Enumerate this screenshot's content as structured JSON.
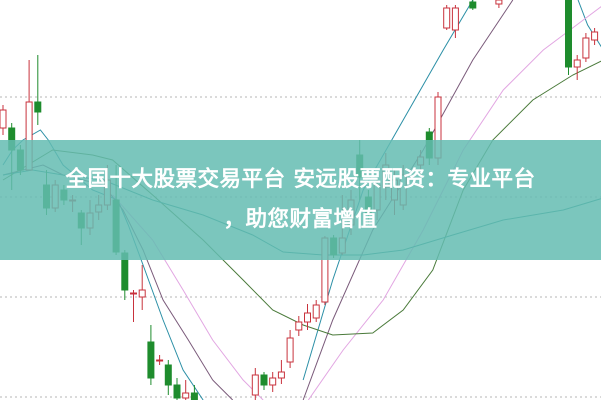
{
  "headline": {
    "line1": "全国十大股票交易平台 安远股票配资：专业平台",
    "line2": "，助您财富增值",
    "banner_color": "#64bcb2"
  },
  "chart_data": {
    "type": "candlestick",
    "title": "",
    "xlabel": "",
    "ylabel": "",
    "ylim": [
      0,
      100
    ],
    "xlim": [
      0,
      68
    ],
    "grid": "horizontal dotted",
    "grid_levels": [
      75.75,
      50.75,
      25.75,
      0.75
    ],
    "colors": {
      "up": "#c8323c",
      "down": "#1e8c2d",
      "grid": "#b4b4b4"
    },
    "candles": [
      {
        "i": 0,
        "o": 68,
        "h": 73.75,
        "l": 66.25,
        "c": 72.5
      },
      {
        "i": 1,
        "o": 68,
        "h": 69.25,
        "l": 52.5,
        "c": 62.5
      },
      {
        "i": 2,
        "o": 62.5,
        "h": 63.75,
        "l": 56.25,
        "c": 57.5
      },
      {
        "i": 3,
        "o": 57.5,
        "h": 85,
        "l": 57.5,
        "c": 74.5
      },
      {
        "i": 4,
        "o": 74.5,
        "h": 86.25,
        "l": 68.75,
        "c": 72
      },
      {
        "i": 5,
        "o": 53.75,
        "h": 57.5,
        "l": 46.25,
        "c": 48
      },
      {
        "i": 6,
        "o": 48,
        "h": 55,
        "l": 47,
        "c": 53.75
      },
      {
        "i": 7,
        "o": 52.5,
        "h": 53.75,
        "l": 48.75,
        "c": 50
      },
      {
        "i": 8,
        "o": 50,
        "h": 51.25,
        "l": 47,
        "c": 50
      },
      {
        "i": 9,
        "o": 46.75,
        "h": 47.5,
        "l": 38.75,
        "c": 43
      },
      {
        "i": 10,
        "o": 43,
        "h": 50,
        "l": 41.25,
        "c": 46.75
      },
      {
        "i": 11,
        "o": 47,
        "h": 51.25,
        "l": 45,
        "c": 48.75
      },
      {
        "i": 12,
        "o": 48.75,
        "h": 58.75,
        "l": 47.5,
        "c": 55
      },
      {
        "i": 13,
        "o": 50,
        "h": 58.75,
        "l": 36.25,
        "c": 37
      },
      {
        "i": 14,
        "o": 36.75,
        "h": 37.5,
        "l": 25,
        "c": 27.5
      },
      {
        "i": 15,
        "o": 26.75,
        "h": 27.5,
        "l": 19.5,
        "c": 26.75
      },
      {
        "i": 16,
        "o": 25.75,
        "h": 33.75,
        "l": 22.5,
        "c": 27.5
      },
      {
        "i": 17,
        "o": 14.5,
        "h": 18.75,
        "l": 3.75,
        "c": 5.5
      },
      {
        "i": 18,
        "o": 10,
        "h": 11.25,
        "l": 8.75,
        "c": 10
      },
      {
        "i": 19,
        "o": 8.75,
        "h": 10,
        "l": 1.25,
        "c": 3.75
      },
      {
        "i": 20,
        "o": 3.75,
        "h": 5.5,
        "l": 0,
        "c": 0.5
      },
      {
        "i": 21,
        "o": 0.5,
        "h": 5,
        "l": 0,
        "c": 1.75
      },
      {
        "i": 22,
        "o": 1.75,
        "h": 3.75,
        "l": 0,
        "c": 0
      },
      {
        "i": 29,
        "o": 1.25,
        "h": 8,
        "l": 0,
        "c": 6.25
      },
      {
        "i": 30,
        "o": 6.25,
        "h": 7,
        "l": 2.5,
        "c": 3.75
      },
      {
        "i": 31,
        "o": 3.75,
        "h": 7,
        "l": 2,
        "c": 5.5
      },
      {
        "i": 32,
        "o": 5.5,
        "h": 10,
        "l": 4,
        "c": 7
      },
      {
        "i": 33,
        "o": 9.5,
        "h": 17.5,
        "l": 8,
        "c": 15.5
      },
      {
        "i": 34,
        "o": 17.5,
        "h": 21,
        "l": 16,
        "c": 19.5
      },
      {
        "i": 35,
        "o": 19.5,
        "h": 24,
        "l": 17.5,
        "c": 21.75
      },
      {
        "i": 36,
        "o": 20.5,
        "h": 25,
        "l": 19.5,
        "c": 23.75
      },
      {
        "i": 37,
        "o": 24.5,
        "h": 41,
        "l": 23.75,
        "c": 40.5
      },
      {
        "i": 38,
        "o": 40.5,
        "h": 41.25,
        "l": 35.5,
        "c": 36.25
      },
      {
        "i": 39,
        "o": 36.75,
        "h": 51.25,
        "l": 36.25,
        "c": 40.5
      },
      {
        "i": 40,
        "o": 43.75,
        "h": 52.5,
        "l": 41.25,
        "c": 50
      },
      {
        "i": 41,
        "o": 61.25,
        "h": 65,
        "l": 50,
        "c": 55.75
      },
      {
        "i": 42,
        "o": 50.75,
        "h": 52.5,
        "l": 43.75,
        "c": 46.75
      },
      {
        "i": 43,
        "o": 47.5,
        "h": 56.25,
        "l": 45,
        "c": 53.75
      },
      {
        "i": 44,
        "o": 53.25,
        "h": 61.75,
        "l": 50,
        "c": 58.75
      },
      {
        "i": 45,
        "o": 50,
        "h": 57.5,
        "l": 46.25,
        "c": 55
      },
      {
        "i": 46,
        "o": 48.75,
        "h": 58.75,
        "l": 47.5,
        "c": 56.25
      },
      {
        "i": 48,
        "o": 58.75,
        "h": 62.5,
        "l": 56.25,
        "c": 60.75
      },
      {
        "i": 49,
        "o": 67,
        "h": 68,
        "l": 58.75,
        "c": 60.5
      },
      {
        "i": 50,
        "o": 60.5,
        "h": 77,
        "l": 58.75,
        "c": 75.75
      },
      {
        "i": 51,
        "o": 93,
        "h": 98.75,
        "l": 92.5,
        "c": 98
      },
      {
        "i": 52,
        "o": 92.5,
        "h": 98.75,
        "l": 90.5,
        "c": 98
      },
      {
        "i": 54,
        "o": 99.5,
        "h": 100,
        "l": 97.5,
        "c": 98
      },
      {
        "i": 57,
        "o": 99,
        "h": 100,
        "l": 98,
        "c": 100
      },
      {
        "i": 65,
        "o": 100,
        "h": 100,
        "l": 81.25,
        "c": 83.25
      },
      {
        "i": 66,
        "o": 83.25,
        "h": 86.25,
        "l": 80,
        "c": 85
      },
      {
        "i": 67,
        "o": 85.5,
        "h": 91.75,
        "l": 84.5,
        "c": 90.5
      },
      {
        "i": 68,
        "o": 90,
        "h": 93,
        "l": 88.75,
        "c": 92
      }
    ],
    "moving_averages": [
      {
        "color": "#2b8fa6",
        "points": [
          [
            0,
            58.75
          ],
          [
            1.1,
            62.5
          ],
          [
            2.3,
            65
          ],
          [
            4.3,
            67.5
          ],
          [
            5.2,
            65
          ],
          [
            6.9,
            58.75
          ],
          [
            10.3,
            52.5
          ],
          [
            13.2,
            50
          ],
          [
            14.4,
            43.75
          ],
          [
            16.1,
            33.75
          ],
          [
            18.4,
            20
          ],
          [
            20.7,
            7.5
          ],
          [
            23,
            0
          ]
        ]
      },
      {
        "color": "#2b8fa6",
        "points": [
          [
            34.5,
            5
          ],
          [
            37.9,
            30
          ],
          [
            41.4,
            52.5
          ],
          [
            46,
            70
          ],
          [
            50.6,
            87.5
          ],
          [
            54,
            100
          ]
        ]
      },
      {
        "color": "#2b8fa6",
        "points": [
          [
            66.1,
            100
          ],
          [
            67.2,
            93.75
          ],
          [
            69,
            87.5
          ]
        ]
      },
      {
        "color": "#7a5a7a",
        "points": [
          [
            0,
            56.25
          ],
          [
            4.6,
            58.75
          ],
          [
            6.9,
            56.25
          ],
          [
            11.5,
            53.75
          ],
          [
            13.8,
            47.5
          ],
          [
            16.1,
            37.5
          ],
          [
            18.4,
            25
          ],
          [
            21.3,
            15
          ],
          [
            24.1,
            5
          ],
          [
            26.4,
            0
          ]
        ]
      },
      {
        "color": "#7a5a7a",
        "points": [
          [
            34.5,
            0
          ],
          [
            37.9,
            20
          ],
          [
            42.5,
            42.5
          ],
          [
            48.3,
            62.5
          ],
          [
            54,
            85
          ],
          [
            58.6,
            100
          ]
        ]
      },
      {
        "color": "#e2a6e2",
        "points": [
          [
            12.6,
            51.25
          ],
          [
            17.2,
            40
          ],
          [
            20.7,
            27.5
          ],
          [
            24.1,
            15
          ],
          [
            27.6,
            5
          ],
          [
            29.9,
            0
          ]
        ]
      },
      {
        "color": "#e2a6e2",
        "points": [
          [
            35.1,
            0
          ],
          [
            39.1,
            12.5
          ],
          [
            43.7,
            25
          ],
          [
            48.3,
            42.5
          ],
          [
            52.9,
            62.5
          ],
          [
            57.5,
            77.5
          ],
          [
            62.1,
            87.5
          ],
          [
            66.7,
            95
          ],
          [
            69,
            98.75
          ]
        ]
      },
      {
        "color": "#4a7a3a",
        "points": [
          [
            0,
            55
          ],
          [
            5.7,
            62.5
          ],
          [
            10.3,
            61.25
          ],
          [
            12.6,
            60
          ],
          [
            17.2,
            51.25
          ],
          [
            23,
            40
          ],
          [
            27.6,
            30
          ],
          [
            31,
            22.5
          ],
          [
            34.5,
            18.75
          ],
          [
            37.9,
            16.25
          ],
          [
            42.5,
            16.75
          ],
          [
            46,
            22.5
          ],
          [
            49.4,
            32.5
          ],
          [
            52.9,
            52.5
          ],
          [
            56.3,
            65
          ],
          [
            60.9,
            75
          ],
          [
            65.5,
            81.25
          ],
          [
            69,
            85
          ]
        ]
      },
      {
        "color": "#2a8a8a",
        "points": [
          [
            0,
            56.25
          ],
          [
            3.4,
            57.5
          ],
          [
            6.9,
            56.25
          ],
          [
            11.5,
            55
          ],
          [
            17.2,
            50
          ],
          [
            23,
            46.25
          ],
          [
            28.7,
            41.25
          ],
          [
            32.2,
            37
          ],
          [
            36.8,
            36.25
          ],
          [
            41.4,
            36.25
          ],
          [
            46,
            37.5
          ],
          [
            51.7,
            41.25
          ],
          [
            57.5,
            45
          ],
          [
            64.4,
            47.5
          ],
          [
            69,
            50.5
          ]
        ]
      }
    ]
  }
}
